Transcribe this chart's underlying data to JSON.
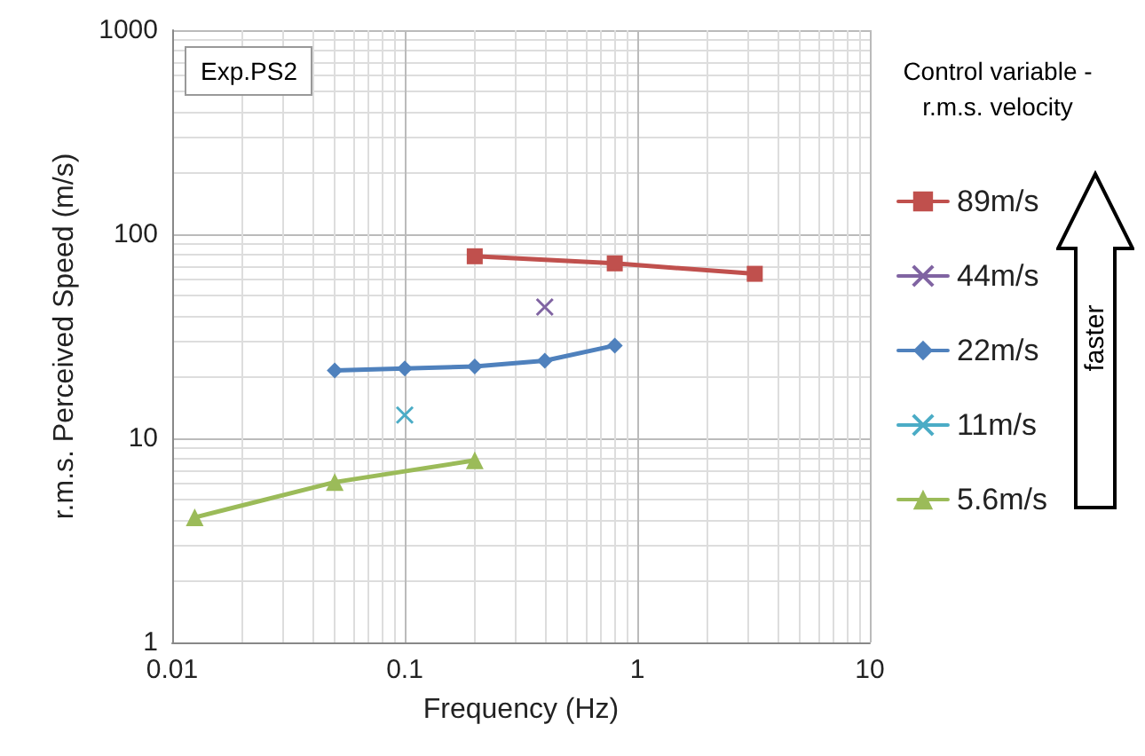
{
  "chart_data": {
    "type": "line",
    "xlabel": "Frequency (Hz)",
    "ylabel": "r.m.s. Perceived Speed (m/s)",
    "legend_title": "Control variable - r.m.s. velocity",
    "annotations": [
      "Exp.PS2",
      "faster"
    ],
    "log": "xy",
    "grid": true,
    "legend": "right",
    "line_style": "solid",
    "xlim": [
      0.01,
      10
    ],
    "xticks": [
      0.01,
      0.1,
      1,
      10
    ],
    "ylim": [
      1,
      1000
    ],
    "yticks": [
      1,
      10,
      100,
      1000
    ],
    "series": [
      {
        "name": "89m/s",
        "color": "#c0504d",
        "marker": "square",
        "x": [
          0.2,
          0.8,
          3.2
        ],
        "values": [
          78,
          72,
          64
        ]
      },
      {
        "name": "44m/s",
        "color": "#8064a2",
        "marker": "cross",
        "x": [
          0.4
        ],
        "values": [
          44
        ]
      },
      {
        "name": "22m/s",
        "color": "#4f81bd",
        "marker": "diamond",
        "x": [
          0.05,
          0.1,
          0.2,
          0.4,
          0.8
        ],
        "values": [
          21.5,
          22,
          22.5,
          24,
          28.5
        ]
      },
      {
        "name": "11m/s",
        "color": "#4bacc6",
        "marker": "cross",
        "x": [
          0.1
        ],
        "values": [
          13
        ]
      },
      {
        "name": "5.6m/s",
        "color": "#9bbb59",
        "marker": "triangle",
        "x": [
          0.0125,
          0.05,
          0.2
        ],
        "values": [
          4.1,
          6.1,
          7.8
        ]
      }
    ]
  }
}
